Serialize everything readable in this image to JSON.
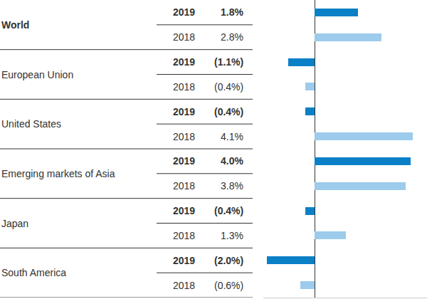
{
  "chart_data": {
    "type": "bar",
    "orientation": "horizontal",
    "categories": [
      "World",
      "European Union",
      "United States",
      "Emerging markets of Asia",
      "Japan",
      "South America"
    ],
    "series": [
      {
        "name": "2019",
        "color": "#0a80c6",
        "values": [
          1.8,
          -1.1,
          -0.4,
          4.0,
          -0.4,
          -2.0
        ],
        "value_labels": [
          "1.8%",
          "(1.1%)",
          "(0.4%)",
          "4.0%",
          "(0.4%)",
          "(2.0%)"
        ]
      },
      {
        "name": "2018",
        "color": "#9ccbec",
        "values": [
          2.8,
          -0.4,
          4.1,
          3.8,
          1.3,
          -0.6
        ],
        "value_labels": [
          "2.8%",
          "(0.4%)",
          "4.1%",
          "3.8%",
          "1.3%",
          "(0.6%)"
        ]
      }
    ],
    "xlim": [
      -2.15,
      4.7
    ],
    "xticks": [
      0
    ],
    "grid": true,
    "tick_labels": false
  }
}
